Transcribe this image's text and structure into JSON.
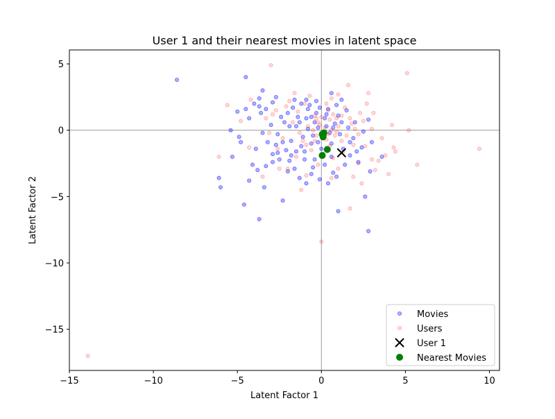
{
  "chart_data": {
    "type": "scatter",
    "title": "User 1 and their nearest movies in latent space",
    "xlabel": "Latent Factor 1",
    "ylabel": "Latent Factor 2",
    "xlim": [
      -15,
      10.6
    ],
    "ylim": [
      -18.1,
      6.05
    ],
    "xticks": [
      -15,
      -10,
      -5,
      0,
      5,
      10
    ],
    "xtick_labels": [
      "−15",
      "−10",
      "−5",
      "0",
      "5",
      "10"
    ],
    "yticks": [
      -15,
      -10,
      -5,
      0,
      5
    ],
    "ytick_labels": [
      "−15",
      "−10",
      "−5",
      "0",
      "5"
    ],
    "reference_lines": {
      "x": 0,
      "y": 0,
      "color": "#999999"
    },
    "grid": false,
    "legend_position": "lower right",
    "series": [
      {
        "name": "Movies",
        "marker": "circle",
        "color": "#0000ff",
        "alpha": 0.3,
        "points": [
          [
            -8.6,
            3.8
          ],
          [
            -4.5,
            4.0
          ],
          [
            -3.5,
            3.0
          ],
          [
            -6.1,
            -3.6
          ],
          [
            -6.0,
            -4.3
          ],
          [
            -5.3,
            -2.0
          ],
          [
            -4.6,
            -5.6
          ],
          [
            -3.7,
            -6.7
          ],
          [
            -4.3,
            -3.8
          ],
          [
            -3.4,
            -4.3
          ],
          [
            -3.8,
            -3.0
          ],
          [
            -2.3,
            -5.3
          ],
          [
            -5.0,
            1.4
          ],
          [
            -4.5,
            1.6
          ],
          [
            -4.9,
            -0.5
          ],
          [
            -5.4,
            0.0
          ],
          [
            -4.0,
            2.0
          ],
          [
            -3.7,
            2.4
          ],
          [
            -3.3,
            1.6
          ],
          [
            -2.7,
            2.5
          ],
          [
            -2.0,
            1.3
          ],
          [
            -3.9,
            -1.4
          ],
          [
            -3.2,
            -0.9
          ],
          [
            -2.6,
            -1.7
          ],
          [
            -1.9,
            -2.3
          ],
          [
            -2.9,
            -2.4
          ],
          [
            -2.0,
            -3.1
          ],
          [
            -1.3,
            -3.6
          ],
          [
            -0.9,
            -4.0
          ],
          [
            -0.1,
            -3.7
          ],
          [
            0.4,
            -4.0
          ],
          [
            0.9,
            -3.5
          ],
          [
            1.0,
            -6.1
          ],
          [
            2.8,
            -7.6
          ],
          [
            2.9,
            -3.1
          ],
          [
            3.6,
            -2.0
          ],
          [
            2.6,
            -5.0
          ],
          [
            2.2,
            -2.4
          ],
          [
            1.7,
            -1.9
          ],
          [
            2.4,
            -1.3
          ],
          [
            3.0,
            -0.9
          ],
          [
            2.8,
            0.8
          ],
          [
            1.2,
            2.3
          ],
          [
            0.6,
            2.8
          ],
          [
            -0.3,
            2.2
          ],
          [
            -0.8,
            1.6
          ],
          [
            -1.2,
            2.0
          ],
          [
            -1.6,
            2.3
          ],
          [
            -2.2,
            0.6
          ],
          [
            -2.6,
            -0.3
          ],
          [
            -1.8,
            -0.8
          ],
          [
            -1.5,
            -1.6
          ],
          [
            -1.0,
            -2.2
          ],
          [
            -0.5,
            -2.8
          ],
          [
            0.2,
            -2.6
          ],
          [
            0.6,
            -2.0
          ],
          [
            1.3,
            -1.4
          ],
          [
            1.9,
            -0.6
          ],
          [
            1.6,
            0.2
          ],
          [
            1.0,
            1.1
          ],
          [
            0.4,
            1.6
          ],
          [
            -0.3,
            1.3
          ],
          [
            -0.9,
            0.9
          ],
          [
            -1.5,
            0.3
          ],
          [
            -1.1,
            -0.5
          ],
          [
            -0.6,
            -1.0
          ],
          [
            0.0,
            -1.4
          ],
          [
            0.6,
            -1.0
          ],
          [
            1.1,
            -0.3
          ],
          [
            0.8,
            0.5
          ],
          [
            0.2,
            0.9
          ],
          [
            -0.4,
            0.6
          ],
          [
            -0.8,
            0.1
          ],
          [
            -0.5,
            -0.4
          ],
          [
            0.1,
            -0.6
          ],
          [
            0.5,
            -0.2
          ],
          [
            0.3,
            0.3
          ],
          [
            -0.2,
            0.2
          ],
          [
            -1.2,
            -1.2
          ],
          [
            -2.1,
            -1.5
          ],
          [
            -2.9,
            -1.8
          ],
          [
            -3.5,
            -0.2
          ],
          [
            -3.0,
            0.4
          ],
          [
            -2.4,
            1.0
          ],
          [
            -1.7,
            1.7
          ],
          [
            -0.9,
            2.3
          ],
          [
            1.5,
            1.5
          ],
          [
            2.0,
            0.6
          ],
          [
            2.5,
            -0.1
          ],
          [
            1.4,
            -2.6
          ],
          [
            0.7,
            -3.2
          ],
          [
            -0.6,
            -3.3
          ],
          [
            -1.6,
            -2.9
          ],
          [
            -2.5,
            -2.2
          ],
          [
            -3.3,
            -2.7
          ],
          [
            -4.1,
            -2.6
          ],
          [
            -4.8,
            -0.9
          ],
          [
            -4.3,
            0.9
          ],
          [
            -3.6,
            1.3
          ],
          [
            -2.9,
            2.1
          ],
          [
            -1.4,
            1.0
          ],
          [
            -0.7,
            1.9
          ],
          [
            0.9,
            1.9
          ],
          [
            1.7,
            -0.9
          ],
          [
            0.1,
            -1.8
          ],
          [
            -0.4,
            -2.2
          ],
          [
            -1.9,
            0.3
          ],
          [
            -2.3,
            -0.9
          ],
          [
            -1.3,
            0.6
          ],
          [
            -0.2,
            -0.9
          ],
          [
            0.7,
            0.2
          ],
          [
            1.2,
            0.6
          ],
          [
            -0.6,
            1.0
          ],
          [
            -1.0,
            -1.6
          ],
          [
            -3.7,
            1.8
          ],
          [
            -2.7,
            -1.1
          ],
          [
            -1.8,
            -1.9
          ],
          [
            2.1,
            -1.6
          ],
          [
            0.3,
            1.2
          ],
          [
            -0.1,
            1.7
          ]
        ]
      },
      {
        "name": "Users",
        "marker": "circle",
        "color": "#ff0000",
        "alpha": 0.15,
        "points": [
          [
            -13.9,
            -17.0
          ],
          [
            9.4,
            -1.4
          ],
          [
            5.1,
            4.3
          ],
          [
            5.7,
            -2.6
          ],
          [
            5.2,
            0.0
          ],
          [
            4.4,
            -1.6
          ],
          [
            4.3,
            -1.3
          ],
          [
            4.0,
            -3.3
          ],
          [
            3.4,
            -2.3
          ],
          [
            3.1,
            1.3
          ],
          [
            2.8,
            2.8
          ],
          [
            1.6,
            3.4
          ],
          [
            -3.0,
            4.9
          ],
          [
            -5.6,
            1.9
          ],
          [
            -6.1,
            -2.0
          ],
          [
            -3.5,
            -3.5
          ],
          [
            -2.5,
            -2.9
          ],
          [
            -1.2,
            -4.5
          ],
          [
            0.0,
            -8.4
          ],
          [
            1.7,
            -5.9
          ],
          [
            2.4,
            -4.0
          ],
          [
            3.0,
            -2.2
          ],
          [
            0.6,
            2.4
          ],
          [
            -0.7,
            2.6
          ],
          [
            -1.9,
            2.2
          ],
          [
            -2.7,
            1.5
          ],
          [
            -3.3,
            0.9
          ],
          [
            -2.3,
            -0.6
          ],
          [
            -1.4,
            1.4
          ],
          [
            -0.4,
            1.1
          ],
          [
            0.4,
            1.5
          ],
          [
            1.2,
            1.1
          ],
          [
            1.8,
            0.5
          ],
          [
            2.2,
            -0.3
          ],
          [
            1.9,
            -1.1
          ],
          [
            1.3,
            -1.6
          ],
          [
            0.7,
            -2.1
          ],
          [
            0.0,
            -1.9
          ],
          [
            -0.6,
            -1.5
          ],
          [
            -1.1,
            -0.8
          ],
          [
            -0.8,
            0.3
          ],
          [
            -0.2,
            0.6
          ],
          [
            0.5,
            0.8
          ],
          [
            1.0,
            0.3
          ],
          [
            0.8,
            -0.4
          ],
          [
            0.3,
            -0.7
          ],
          [
            -0.3,
            -0.4
          ],
          [
            -0.5,
            0.0
          ],
          [
            0.2,
            0.2
          ],
          [
            0.6,
            0.0
          ],
          [
            0.1,
            -0.2
          ],
          [
            -0.1,
            0.4
          ],
          [
            0.9,
            0.9
          ],
          [
            1.5,
            -0.4
          ],
          [
            2.5,
            0.7
          ],
          [
            3.0,
            0.1
          ],
          [
            2.6,
            -1.2
          ],
          [
            2.2,
            -2.5
          ],
          [
            1.0,
            -2.9
          ],
          [
            -0.2,
            -2.6
          ],
          [
            -1.5,
            -2.0
          ],
          [
            -2.6,
            -1.4
          ],
          [
            -3.1,
            -0.2
          ],
          [
            -2.9,
            1.2
          ],
          [
            -2.1,
            1.8
          ],
          [
            -1.0,
            2.0
          ],
          [
            0.3,
            2.0
          ],
          [
            1.4,
            1.7
          ],
          [
            2.3,
            1.3
          ],
          [
            3.6,
            -0.6
          ],
          [
            3.8,
            -1.9
          ],
          [
            3.2,
            -3.0
          ],
          [
            1.9,
            -3.5
          ],
          [
            0.6,
            -3.6
          ],
          [
            -0.9,
            -3.4
          ],
          [
            -2.0,
            -2.9
          ],
          [
            -4.3,
            -1.3
          ],
          [
            -4.8,
            0.7
          ],
          [
            -4.2,
            2.3
          ],
          [
            -1.6,
            2.8
          ],
          [
            1.0,
            2.7
          ],
          [
            2.7,
            2.0
          ],
          [
            4.2,
            0.4
          ],
          [
            0.4,
            -0.3
          ],
          [
            -0.3,
            0.9
          ],
          [
            0.7,
            1.2
          ],
          [
            1.2,
            -0.8
          ],
          [
            -0.9,
            -1.1
          ],
          [
            -1.7,
            0.6
          ],
          [
            1.7,
            0.9
          ],
          [
            0.0,
            1.0
          ],
          [
            0.5,
            -1.2
          ],
          [
            -0.4,
            -0.8
          ],
          [
            0.9,
            -0.1
          ],
          [
            -1.3,
            -0.2
          ],
          [
            2.0,
            0.1
          ]
        ]
      },
      {
        "name": "User 1",
        "marker": "x",
        "color": "#000000",
        "points": [
          [
            1.2,
            -1.7
          ]
        ]
      },
      {
        "name": "Nearest Movies",
        "marker": "circle",
        "color": "#008000",
        "points": [
          [
            0.05,
            -1.9
          ],
          [
            0.35,
            -1.45
          ],
          [
            0.1,
            -0.5
          ],
          [
            0.15,
            -0.2
          ],
          [
            0.05,
            -0.3
          ]
        ]
      }
    ]
  }
}
